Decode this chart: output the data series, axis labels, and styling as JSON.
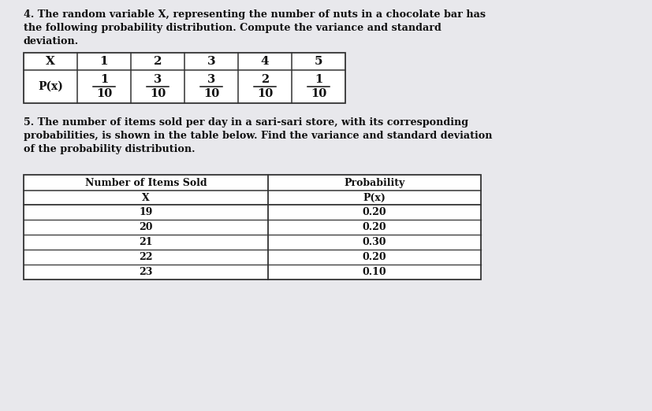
{
  "bg_color": "#e8e8ec",
  "text_color": "#111111",
  "title4_line1": "4. The random variable X, representing the number of nuts in a chocolate bar has",
  "title4_line2": "the following probability distribution. Compute the variance and standard",
  "title4_line3": "deviation.",
  "table1_headers": [
    "X",
    "1",
    "2",
    "3",
    "4",
    "5"
  ],
  "table1_row_label": "P(x)",
  "table1_fractions_num": [
    "1",
    "3",
    "3",
    "2",
    "1"
  ],
  "table1_fractions_den": [
    "10",
    "10",
    "10",
    "10",
    "10"
  ],
  "title5_line1": "5. The number of items sold per day in a sari-sari store, with its corresponding",
  "title5_line2": "probabilities, is shown in the table below. Find the variance and standard deviation",
  "title5_line3": "of the probability distribution.",
  "table2_col1_header_line1": "Number of Items Sold",
  "table2_col1_header_line2": "X",
  "table2_col2_header_line1": "Probability",
  "table2_col2_header_line2": "P(x)",
  "table2_items": [
    "19",
    "20",
    "21",
    "22",
    "23"
  ],
  "table2_probs": [
    "0.20",
    "0.20",
    "0.30",
    "0.20",
    "0.10"
  ],
  "figw": 8.28,
  "figh": 5.22,
  "dpi": 100
}
